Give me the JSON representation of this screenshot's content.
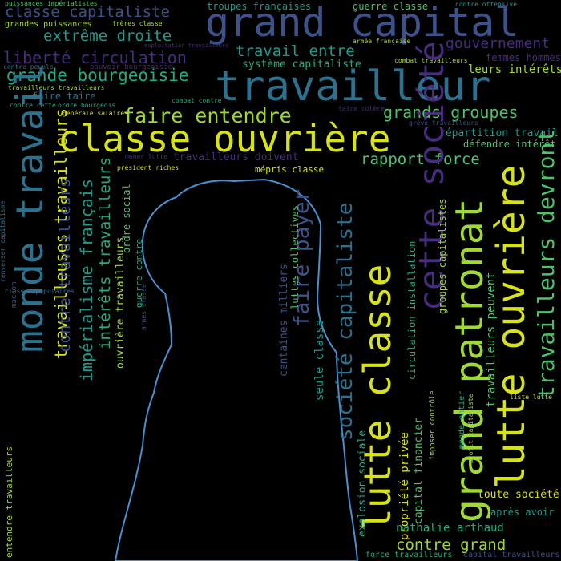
{
  "colors": {
    "background": "#000000",
    "silhouette_outline": "#4a8fd0",
    "yellow": "#d7e219",
    "lime": "#9fd938",
    "green": "#4ec36b",
    "teal": "#25ab82",
    "cyan": "#1f9a8a",
    "blue": "#2c728e",
    "indigo": "#3b528b",
    "purple": "#472d7b",
    "dark_purple": "#440154"
  },
  "words": [
    {
      "text": "grand capital",
      "color": "indigo"
    },
    {
      "text": "travailleur",
      "color": "blue"
    },
    {
      "text": "classe ouvrière",
      "color": "yellow"
    },
    {
      "text": "faire entendre",
      "color": "lime"
    },
    {
      "text": "grands groupes",
      "color": "green"
    },
    {
      "text": "grande bourgeoisie",
      "color": "teal"
    },
    {
      "text": "classe capitaliste",
      "color": "indigo"
    },
    {
      "text": "extrême droite",
      "color": "cyan"
    },
    {
      "text": "liberté circulation",
      "color": "purple"
    },
    {
      "text": "travail entre",
      "color": "cyan"
    },
    {
      "text": "gouvernement",
      "color": "purple"
    },
    {
      "text": "système capitaliste",
      "color": "teal"
    },
    {
      "text": "leurs intérêts",
      "color": "lime"
    },
    {
      "text": "femmes hommes",
      "color": "purple"
    },
    {
      "text": "faire taire",
      "color": "blue"
    },
    {
      "text": "rapport force",
      "color": "green"
    },
    {
      "text": "répartition travail",
      "color": "cyan"
    },
    {
      "text": "défendre intérêt",
      "color": "green"
    },
    {
      "text": "travailleurs doivent",
      "color": "purple"
    },
    {
      "text": "mépris classe",
      "color": "yellow"
    },
    {
      "text": "troupes françaises",
      "color": "cyan"
    },
    {
      "text": "guerre classe",
      "color": "green"
    },
    {
      "text": "puissances impérialistes",
      "color": "green"
    },
    {
      "text": "grandes puissances",
      "color": "lime"
    },
    {
      "text": "frères classe",
      "color": "lime"
    },
    {
      "text": "contre offensive",
      "color": "cyan"
    },
    {
      "text": "armée française",
      "color": "lime"
    },
    {
      "text": "exploitation travailleurs",
      "color": "purple"
    },
    {
      "text": "pouvoir bourgeoisie",
      "color": "purple"
    },
    {
      "text": "contre peuple",
      "color": "blue"
    },
    {
      "text": "combat travailleurs",
      "color": "lime"
    },
    {
      "text": "travailleurs travailleurs",
      "color": "lime"
    },
    {
      "text": "contre cette",
      "color": "teal"
    },
    {
      "text": "ordre bourgeois",
      "color": "teal"
    },
    {
      "text": "générale salaires",
      "color": "yellow"
    },
    {
      "text": "combat contre",
      "color": "teal"
    },
    {
      "text": "taire colère",
      "color": "purple"
    },
    {
      "text": "grève travailleurs",
      "color": "indigo"
    },
    {
      "text": "président riches",
      "color": "yellow"
    },
    {
      "text": "mener lutte",
      "color": "purple"
    },
    {
      "text": "toute société",
      "color": "yellow"
    },
    {
      "text": "après avoir",
      "color": "cyan"
    },
    {
      "text": "nathalie arthaud",
      "color": "teal"
    },
    {
      "text": "contre grand",
      "color": "lime"
    },
    {
      "text": "liste lutte",
      "color": "yellow"
    },
    {
      "text": "force travailleurs",
      "color": "teal"
    },
    {
      "text": "capital travailleurs",
      "color": "indigo"
    },
    {
      "text": "entendre travailleurs",
      "color": "lime"
    },
    {
      "text": "monde travail",
      "color": "blue"
    },
    {
      "text": "travailleuses travailleurs",
      "color": "yellow"
    },
    {
      "text": "contre travailleurs",
      "color": "indigo"
    },
    {
      "text": "impérialisme français",
      "color": "cyan"
    },
    {
      "text": "intérêts travailleurs",
      "color": "teal"
    },
    {
      "text": "ouvrière travailleurs",
      "color": "lime"
    },
    {
      "text": "ordre social",
      "color": "green"
    },
    {
      "text": "guerre contre",
      "color": "teal"
    },
    {
      "text": "société capitaliste",
      "color": "blue"
    },
    {
      "text": "faire payer",
      "color": "indigo"
    },
    {
      "text": "lutte classe",
      "color": "yellow"
    },
    {
      "text": "cette société",
      "color": "purple"
    },
    {
      "text": "grand patronat",
      "color": "lime"
    },
    {
      "text": "lutte ouvrière",
      "color": "yellow"
    },
    {
      "text": "travailleurs devront",
      "color": "green"
    },
    {
      "text": "travailleurs peuvent",
      "color": "green"
    },
    {
      "text": "renverser capitalisme",
      "color": "blue"
    },
    {
      "text": "macron",
      "color": "indigo"
    },
    {
      "text": "classes populaires",
      "color": "blue"
    },
    {
      "text": "seule classe",
      "color": "cyan"
    },
    {
      "text": "centaines milliers",
      "color": "indigo"
    },
    {
      "text": "luttes collectives",
      "color": "green"
    },
    {
      "text": "circulation installation",
      "color": "teal"
    },
    {
      "text": "groupes capitalistes",
      "color": "lime"
    },
    {
      "text": "propriété privée",
      "color": "yellow"
    },
    {
      "text": "capital financier",
      "color": "green"
    },
    {
      "text": "explosion sociale",
      "color": "teal"
    },
    {
      "text": "imposer contrôle",
      "color": "lime"
    },
    {
      "text": "monde entier",
      "color": "teal"
    },
    {
      "text": "profit capitaliste",
      "color": "lime"
    },
    {
      "text": "armes classe",
      "color": "indigo"
    }
  ]
}
